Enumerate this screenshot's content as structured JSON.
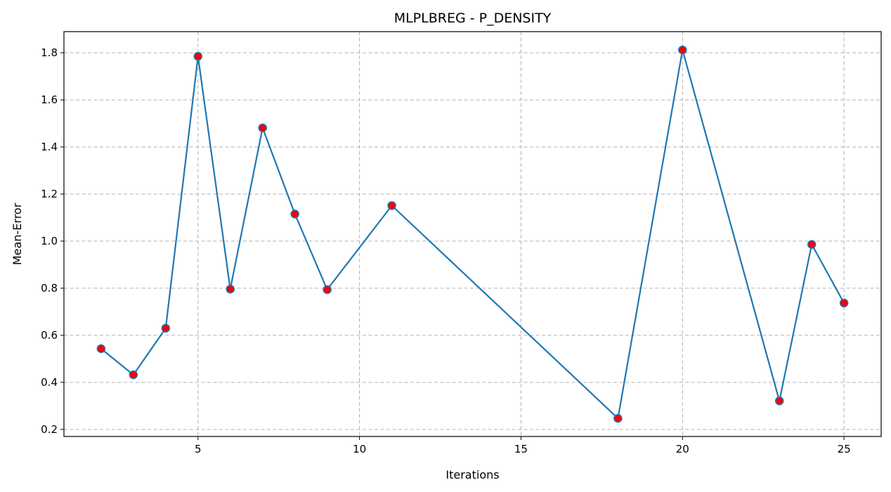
{
  "chart_data": {
    "type": "line",
    "title": "MLPLBREG - P_DENSITY",
    "xlabel": "Iterations",
    "ylabel": "Mean-Error",
    "xlim": [
      0.85,
      26.15
    ],
    "ylim": [
      0.17,
      1.89
    ],
    "xticks": [
      5,
      10,
      15,
      20,
      25
    ],
    "yticks": [
      0.2,
      0.4,
      0.6,
      0.8,
      1.0,
      1.2,
      1.4,
      1.6,
      1.8
    ],
    "xtick_labels": [
      "5",
      "10",
      "15",
      "20",
      "25"
    ],
    "ytick_labels": [
      "0.2",
      "0.4",
      "0.6",
      "0.8",
      "1.0",
      "1.2",
      "1.4",
      "1.6",
      "1.8"
    ],
    "grid": true,
    "series": [
      {
        "x": [
          2,
          3,
          4,
          5,
          6,
          7,
          8,
          9,
          11,
          18,
          20,
          23,
          24,
          25
        ],
        "y": [
          0.543,
          0.432,
          0.63,
          1.785,
          0.796,
          1.481,
          1.115,
          0.794,
          1.151,
          0.247,
          1.812,
          0.321,
          0.986,
          0.737
        ],
        "line_color": "#1f77b4",
        "marker_fill": "#ff0000",
        "marker_edge": "#1f77b4"
      }
    ]
  }
}
